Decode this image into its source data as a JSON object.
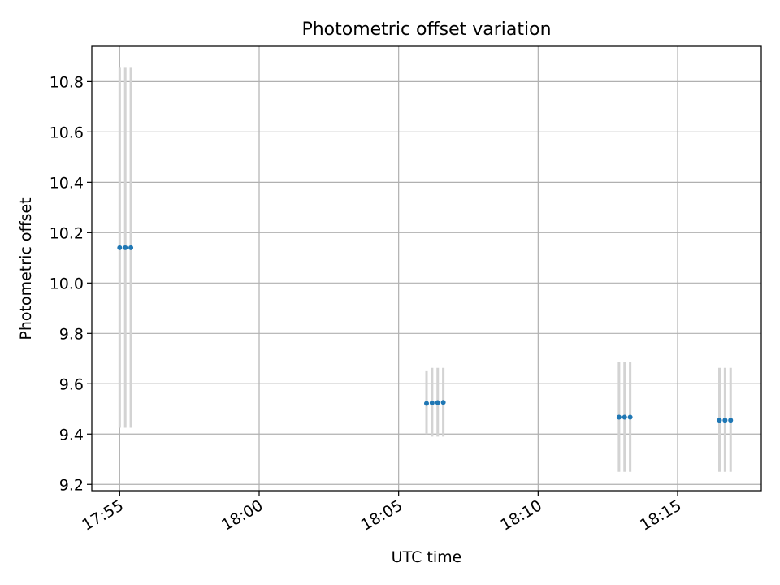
{
  "chart_data": {
    "type": "scatter",
    "title": "Photometric offset variation",
    "xlabel": "UTC time",
    "ylabel": "Photometric offset",
    "xlim": [
      "17:54:00",
      "18:18:00"
    ],
    "ylim": [
      9.175,
      10.94
    ],
    "grid": true,
    "x_ticks": [
      "17:55",
      "18:00",
      "18:05",
      "18:10",
      "18:15"
    ],
    "y_ticks": [
      "9.2",
      "9.4",
      "9.6",
      "9.8",
      "10.0",
      "10.2",
      "10.4",
      "10.6",
      "10.8"
    ],
    "series": [
      {
        "marker_color": "#1f77b4",
        "errorbar_color": "#d3d3d3",
        "points": [
          {
            "x": "17:55:00",
            "y": 10.14,
            "yerr_low": 9.425,
            "yerr_high": 10.855
          },
          {
            "x": "17:55:12",
            "y": 10.14,
            "yerr_low": 9.425,
            "yerr_high": 10.855
          },
          {
            "x": "17:55:24",
            "y": 10.14,
            "yerr_low": 9.425,
            "yerr_high": 10.855
          },
          {
            "x": "18:06:00",
            "y": 9.522,
            "yerr_low": 9.4,
            "yerr_high": 9.653
          },
          {
            "x": "18:06:12",
            "y": 9.524,
            "yerr_low": 9.39,
            "yerr_high": 9.663
          },
          {
            "x": "18:06:24",
            "y": 9.525,
            "yerr_low": 9.39,
            "yerr_high": 9.663
          },
          {
            "x": "18:06:36",
            "y": 9.526,
            "yerr_low": 9.39,
            "yerr_high": 9.663
          },
          {
            "x": "18:12:54",
            "y": 9.467,
            "yerr_low": 9.25,
            "yerr_high": 9.685
          },
          {
            "x": "18:13:06",
            "y": 9.467,
            "yerr_low": 9.25,
            "yerr_high": 9.685
          },
          {
            "x": "18:13:18",
            "y": 9.467,
            "yerr_low": 9.25,
            "yerr_high": 9.685
          },
          {
            "x": "18:16:30",
            "y": 9.455,
            "yerr_low": 9.25,
            "yerr_high": 9.663
          },
          {
            "x": "18:16:42",
            "y": 9.455,
            "yerr_low": 9.25,
            "yerr_high": 9.663
          },
          {
            "x": "18:16:54",
            "y": 9.455,
            "yerr_low": 9.25,
            "yerr_high": 9.663
          }
        ]
      }
    ]
  }
}
